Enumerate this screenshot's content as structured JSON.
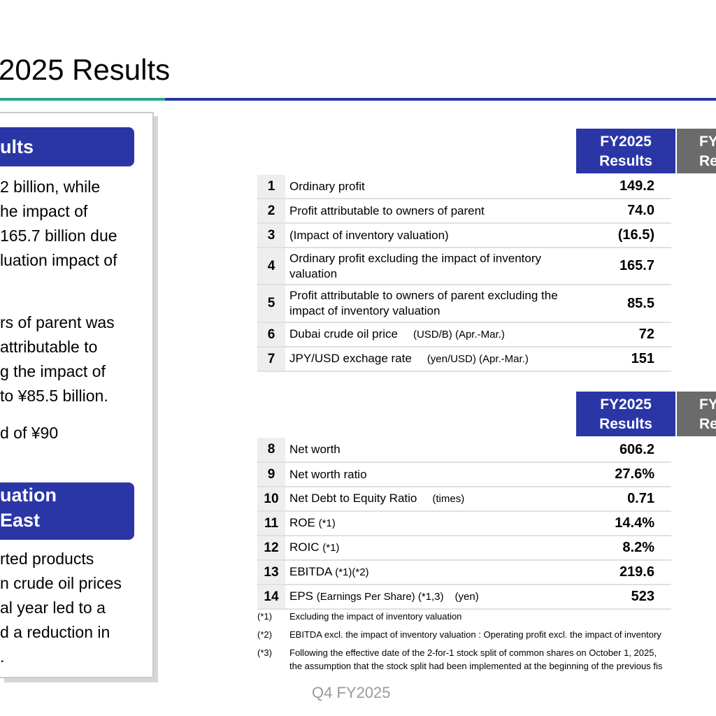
{
  "title": "2025 Results",
  "left_panel": {
    "badge1": "ults",
    "para1": [
      "2 billion, while",
      "he impact of",
      "165.7 billion due",
      "luation impact of"
    ],
    "para2": [
      "rs of parent was",
      "attributable to",
      "g the impact of",
      "to ¥85.5 billion."
    ],
    "para3": [
      "d of ¥90"
    ],
    "badge2": [
      "uation",
      "East"
    ],
    "para4": [
      "rted products",
      "n crude oil prices",
      "al year led to a",
      "d a reduction in",
      "."
    ]
  },
  "table1": {
    "header": [
      "FY2025",
      "Results"
    ],
    "header_partial": [
      "FY",
      "Re"
    ],
    "rows": [
      {
        "num": "1",
        "label": "Ordinary profit",
        "value": "149.2"
      },
      {
        "num": "2",
        "label": "Profit attributable to owners of parent",
        "value": "74.0"
      },
      {
        "num": "3",
        "label": "(Impact of inventory valuation)",
        "value": "(16.5)"
      },
      {
        "num": "4",
        "label": "Ordinary profit excluding the impact of inventory valuation",
        "value": "165.7"
      },
      {
        "num": "5",
        "label": "Profit attributable to owners of parent excluding the impact of inventory valuation",
        "value": "85.5"
      },
      {
        "num": "6",
        "label": "Dubai crude oil price",
        "unit": "(USD/B) (Apr.-Mar.)",
        "value": "72"
      },
      {
        "num": "7",
        "label": "JPY/USD exchage rate",
        "unit": "(yen/USD) (Apr.-Mar.)",
        "value": "151"
      }
    ]
  },
  "table2": {
    "header": [
      "FY2025",
      "Results"
    ],
    "header_partial": [
      "FY",
      "Re"
    ],
    "rows": [
      {
        "num": "8",
        "label": "Net worth",
        "value": "606.2"
      },
      {
        "num": "9",
        "label": "Net worth ratio",
        "value": "27.6%"
      },
      {
        "num": "10",
        "label": "Net Debt to Equity Ratio",
        "unit": "(times)",
        "value": "0.71"
      },
      {
        "num": "11",
        "label": "ROE",
        "note": "(*1)",
        "value": "14.4%"
      },
      {
        "num": "12",
        "label": "ROIC",
        "note": "(*1)",
        "value": "8.2%"
      },
      {
        "num": "13",
        "label": "EBITDA",
        "note": "(*1)(*2)",
        "value": "219.6"
      },
      {
        "num": "14",
        "label": "EPS",
        "note": "(Earnings Per Share) (*1,3)",
        "unit": "(yen)",
        "value": "523"
      }
    ]
  },
  "footnotes": [
    {
      "mark": "(*1)",
      "text": "Excluding the impact of inventory valuation"
    },
    {
      "mark": "(*2)",
      "text": "EBITDA excl. the impact of inventory valuation : Operating profit excl. the impact of inventory"
    },
    {
      "mark": "(*3)",
      "text": "Following the effective date of the 2-for-1 stock split of common shares on October 1, 2025,",
      "text2": "the assumption that the stock split had been implemented at the beginning of the previous fis"
    }
  ],
  "footer": "Q4 FY2025"
}
